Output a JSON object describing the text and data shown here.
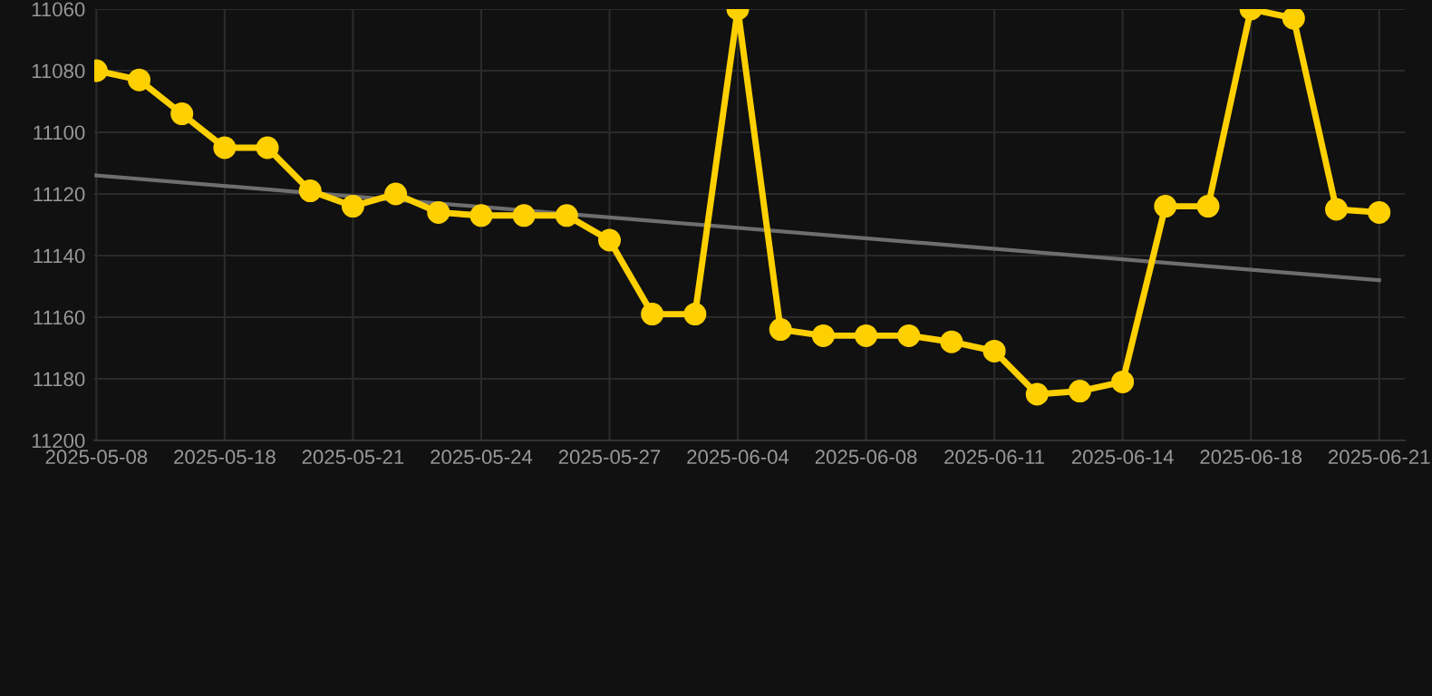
{
  "chart_data": {
    "type": "line",
    "categories": [
      "2025-05-08",
      null,
      null,
      "2025-05-18",
      null,
      null,
      "2025-05-21",
      null,
      null,
      "2025-05-24",
      null,
      null,
      "2025-05-27",
      null,
      null,
      "2025-06-04",
      null,
      null,
      "2025-06-08",
      null,
      null,
      "2025-06-11",
      null,
      null,
      "2025-06-14",
      null,
      null,
      "2025-06-18",
      null,
      null,
      "2025-06-21"
    ],
    "series": [
      {
        "color": "#ffd000",
        "marker": "circle",
        "values": [
          11080,
          11083,
          11094,
          11105,
          11105,
          11119,
          11124,
          11120,
          11126,
          11127,
          11127,
          11127,
          11135,
          11159,
          11159,
          11060,
          11164,
          11166,
          11166,
          11166,
          11168,
          11171,
          11185,
          11184,
          11181,
          11124,
          11124,
          11060,
          11063,
          11125,
          11126
        ]
      },
      {
        "color": "#6e6e6e",
        "marker": "none",
        "values": [
          11114,
          null,
          null,
          null,
          null,
          null,
          null,
          null,
          null,
          null,
          null,
          null,
          null,
          null,
          null,
          null,
          null,
          null,
          null,
          null,
          null,
          null,
          null,
          null,
          null,
          null,
          null,
          null,
          null,
          null,
          11148
        ]
      }
    ],
    "ylim": [
      11200,
      11060
    ],
    "yticks": [
      11060,
      11080,
      11100,
      11120,
      11140,
      11160,
      11180,
      11200
    ],
    "grid": true,
    "line_style": "solid"
  }
}
